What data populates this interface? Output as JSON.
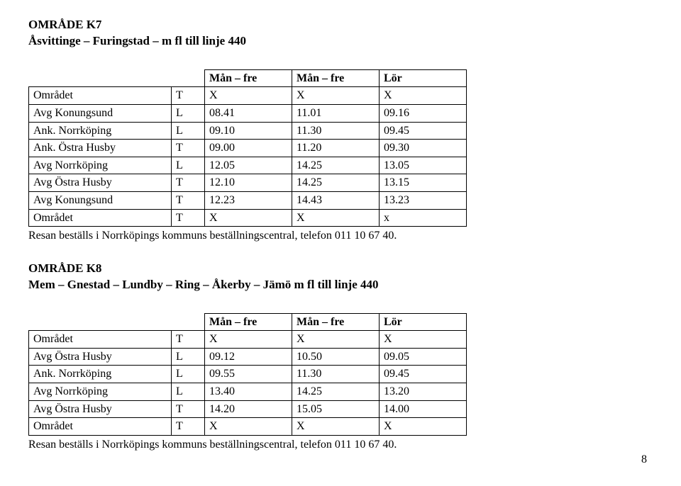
{
  "section1": {
    "heading": "OMRÅDE K7",
    "subheading": "Åsvittinge – Furingstad – m fl till linje 440",
    "columnHeaders": [
      "Mån – fre",
      "Mån – fre",
      "Lör"
    ],
    "rows": [
      {
        "label": "Området",
        "type": "T",
        "c1": "X",
        "c2": "X",
        "c3": "X"
      },
      {
        "label": "Avg Konungsund",
        "type": "L",
        "c1": "08.41",
        "c2": "11.01",
        "c3": "09.16"
      },
      {
        "label": "Ank. Norrköping",
        "type": "L",
        "c1": "09.10",
        "c2": "11.30",
        "c3": "09.45"
      },
      {
        "label": "Ank. Östra Husby",
        "type": "T",
        "c1": "09.00",
        "c2": "11.20",
        "c3": "09.30"
      },
      {
        "label": "Avg Norrköping",
        "type": "L",
        "c1": "12.05",
        "c2": "14.25",
        "c3": "13.05"
      },
      {
        "label": "Avg Östra Husby",
        "type": "T",
        "c1": "12.10",
        "c2": "14.25",
        "c3": "13.15"
      },
      {
        "label": "Avg Konungsund",
        "type": "T",
        "c1": "12.23",
        "c2": "14.43",
        "c3": "13.23"
      },
      {
        "label": "Området",
        "type": "T",
        "c1": "X",
        "c2": "X",
        "c3": "x"
      }
    ],
    "note": "Resan beställs i Norrköpings kommuns beställningscentral, telefon 011 10 67 40."
  },
  "section2": {
    "heading": "OMRÅDE K8",
    "subheading": "Mem – Gnestad – Lundby – Ring – Åkerby – Jämö m fl till linje 440",
    "columnHeaders": [
      "Mån – fre",
      "Mån – fre",
      "Lör"
    ],
    "rows": [
      {
        "label": "Området",
        "type": "T",
        "c1": "X",
        "c2": "X",
        "c3": "X"
      },
      {
        "label": "Avg Östra Husby",
        "type": "L",
        "c1": "09.12",
        "c2": "10.50",
        "c3": "09.05"
      },
      {
        "label": "Ank. Norrköping",
        "type": "L",
        "c1": "09.55",
        "c2": "11.30",
        "c3": "09.45"
      },
      {
        "label": "Avg Norrköping",
        "type": "L",
        "c1": "13.40",
        "c2": "14.25",
        "c3": "13.20"
      },
      {
        "label": "Avg Östra Husby",
        "type": "T",
        "c1": "14.20",
        "c2": "15.05",
        "c3": "14.00"
      },
      {
        "label": "Området",
        "type": "T",
        "c1": "X",
        "c2": "X",
        "c3": "X"
      }
    ],
    "note": "Resan beställs i Norrköpings kommuns beställningscentral, telefon 011 10 67 40."
  },
  "pageNumber": "8",
  "styling": {
    "fontFamily": "Times New Roman",
    "bodyFontSizePt": 12,
    "headingFontSizePt": 12,
    "textColor": "#000000",
    "backgroundColor": "#ffffff",
    "tableBorderColor": "#000000",
    "tableBorderWidthPx": 1,
    "columnWidthsPx": {
      "label": 188,
      "type": 34,
      "data": 110
    }
  }
}
